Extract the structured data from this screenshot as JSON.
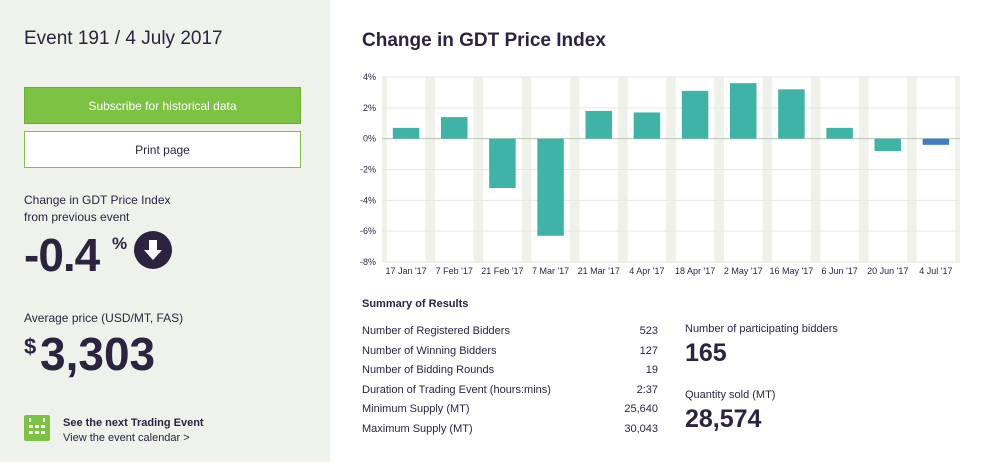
{
  "event": {
    "title": "Event 191 / 4 July 2017"
  },
  "buttons": {
    "subscribe_label": "Subscribe for historical data",
    "print_label": "Print page"
  },
  "change": {
    "label_line1": "Change in GDT Price Index",
    "label_line2": "from previous event",
    "value": "-0.4",
    "unit": "%"
  },
  "average": {
    "label": "Average price (USD/MT, FAS)",
    "currency": "$",
    "value": "3,303"
  },
  "next_event": {
    "title": "See the next Trading Event",
    "link": "View the event calendar >"
  },
  "chart_title": "Change in GDT Price Index",
  "colors": {
    "positive": "#3fb3a6",
    "latest": "#3d7dc4",
    "accent": "#7cc243",
    "dark": "#2b2340"
  },
  "chart_data": {
    "type": "bar",
    "title": "Change in GDT Price Index",
    "categories": [
      "17 Jan '17",
      "7 Feb '17",
      "21 Feb '17",
      "7 Mar '17",
      "21 Mar '17",
      "4 Apr '17",
      "18 Apr '17",
      "2 May '17",
      "16 May '17",
      "6 Jun '17",
      "20 Jun '17",
      "4 Jul '17"
    ],
    "values": [
      0.7,
      1.4,
      -3.2,
      -6.3,
      1.8,
      1.7,
      3.1,
      3.6,
      3.2,
      0.7,
      -0.8,
      -0.4
    ],
    "ylim": [
      -8,
      4
    ],
    "yticks": [
      "4%",
      "2%",
      "0%",
      "-2%",
      "-4%",
      "-6%",
      "-8%"
    ],
    "ytick_values": [
      4,
      2,
      0,
      -2,
      -4,
      -6,
      -8
    ],
    "grid": true
  },
  "summary": {
    "title": "Summary of Results",
    "rows": [
      {
        "label": "Number of Registered Bidders",
        "value": "523"
      },
      {
        "label": "Number of Winning Bidders",
        "value": "127"
      },
      {
        "label": "Number of Bidding Rounds",
        "value": "19"
      },
      {
        "label": "Duration of Trading Event (hours:mins)",
        "value": "2:37"
      },
      {
        "label": "Minimum Supply (MT)",
        "value": "25,640"
      },
      {
        "label": "Maximum Supply (MT)",
        "value": "30,043"
      }
    ]
  },
  "stats": {
    "bidders_label": "Number of participating bidders",
    "bidders_value": "165",
    "quantity_label": "Quantity sold (MT)",
    "quantity_value": "28,574"
  },
  "icons": {
    "down": "arrow-down-circle-icon",
    "calendar": "calendar-icon"
  }
}
